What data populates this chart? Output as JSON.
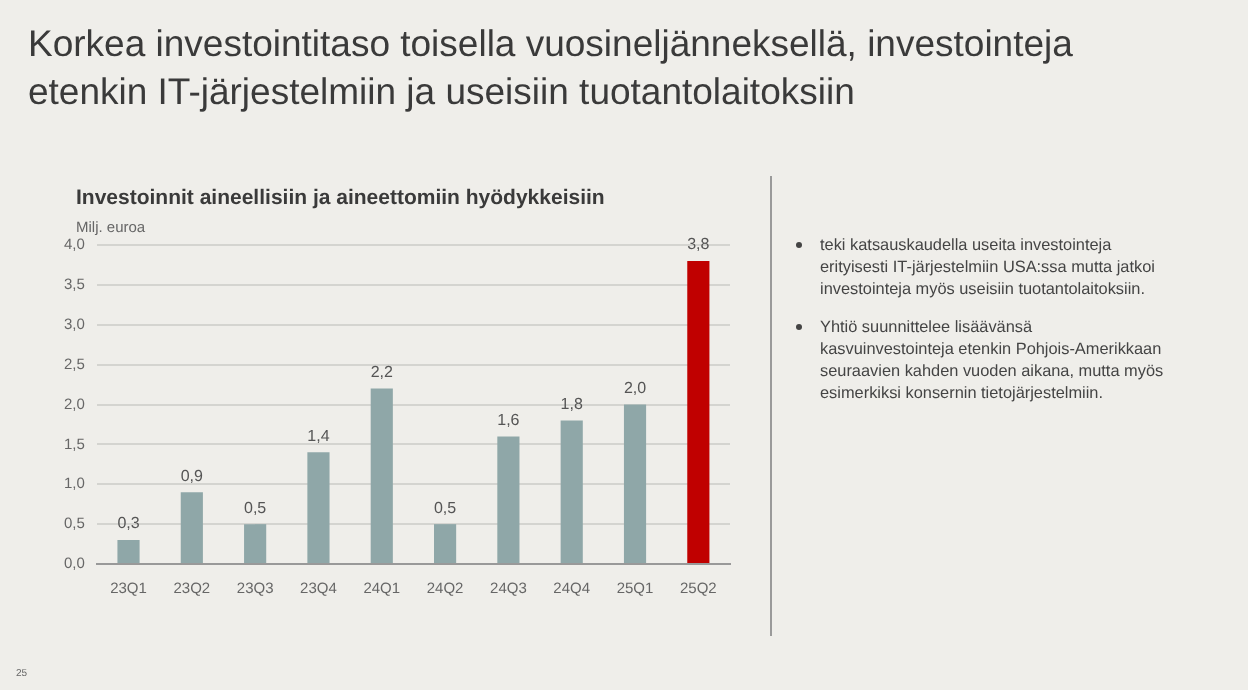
{
  "chart_data": {
    "type": "bar",
    "title": "Korkea investointitaso toisella vuosineljänneksellä, investointeja etenkin IT-järjestelmiin ja useisiin tuotantolaitoksiin",
    "subtitle": "Investoinnit aineellisiin ja aineettomiin hyödykkeisiin",
    "ylabel": "Milj. euroa",
    "categories": [
      "23Q1",
      "23Q2",
      "23Q3",
      "23Q4",
      "24Q1",
      "24Q2",
      "24Q3",
      "24Q4",
      "25Q1",
      "25Q2"
    ],
    "values": [
      0.3,
      0.9,
      0.5,
      1.4,
      2.2,
      0.5,
      1.6,
      1.8,
      2.0,
      3.8
    ],
    "colors": [
      "#8fa7a8",
      "#8fa7a8",
      "#8fa7a8",
      "#8fa7a8",
      "#8fa7a8",
      "#8fa7a8",
      "#8fa7a8",
      "#8fa7a8",
      "#8fa7a8",
      "#c00000"
    ],
    "ylim": [
      0,
      4
    ],
    "yticks": [
      {
        "value": 0,
        "label": "0,0"
      },
      {
        "value": 0.5,
        "label": "0,5"
      },
      {
        "value": 1,
        "label": "1,0"
      },
      {
        "value": 1.5,
        "label": "1,5"
      },
      {
        "value": 2,
        "label": "2,0"
      },
      {
        "value": 2.5,
        "label": "2,5"
      },
      {
        "value": 3,
        "label": "3,0"
      },
      {
        "value": 3.5,
        "label": "3,5"
      },
      {
        "value": 4,
        "label": "4,0"
      }
    ],
    "value_labels": [
      "0,3",
      "0,9",
      "0,5",
      "1,4",
      "2,2",
      "0,5",
      "1,6",
      "1,8",
      "2,0",
      "3,8"
    ],
    "grid": "y",
    "annotations": [
      "teki katsauskaudella useita investointeja erityisesti IT-järjestelmiin USA:ssa mutta jatkoi investointeja myös useisiin tuotantolaitoksiin.",
      "Yhtiö suunnittelee lisäävänsä kasvuinvestointeja etenkin Pohjois-Amerikkaan seuraavien kahden vuoden aikana, mutta myös esimerkiksi konsernin tietojärjestelmiin.",
      "25"
    ]
  }
}
